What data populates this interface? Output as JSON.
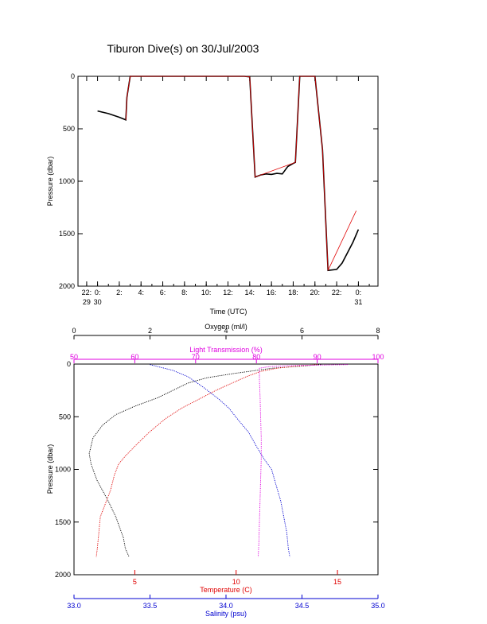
{
  "title": "Tiburon Dive(s) on 30/Jul/2003",
  "colors": {
    "black": "#000000",
    "red": "#e00000",
    "blue": "#0000d0",
    "magenta": "#e000e0"
  },
  "chart_data": [
    {
      "type": "line",
      "xlabel": "Time (UTC)",
      "ylabel": "Pressure (dbar)",
      "y_reversed": true,
      "ylim": [
        0,
        2000
      ],
      "xlim": [
        -1.8,
        25.8
      ],
      "x_ticks": [
        {
          "x": -1,
          "line1": "22:",
          "line2": "29"
        },
        {
          "x": 0,
          "line1": "0:",
          "line2": "30"
        },
        {
          "x": 2,
          "line1": "2:",
          "line2": ""
        },
        {
          "x": 4,
          "line1": "4:",
          "line2": ""
        },
        {
          "x": 6,
          "line1": "6:",
          "line2": ""
        },
        {
          "x": 8,
          "line1": "8:",
          "line2": ""
        },
        {
          "x": 10,
          "line1": "10:",
          "line2": ""
        },
        {
          "x": 12,
          "line1": "12:",
          "line2": ""
        },
        {
          "x": 14,
          "line1": "14:",
          "line2": ""
        },
        {
          "x": 16,
          "line1": "16:",
          "line2": ""
        },
        {
          "x": 18,
          "line1": "18:",
          "line2": ""
        },
        {
          "x": 20,
          "line1": "20:",
          "line2": ""
        },
        {
          "x": 22,
          "line1": "22:",
          "line2": ""
        },
        {
          "x": 24,
          "line1": "0:",
          "line2": "31"
        }
      ],
      "y_ticks": [
        0,
        500,
        1000,
        1500,
        2000
      ],
      "series": [
        {
          "color": "#000000",
          "points": [
            [
              0.0,
              330
            ],
            [
              1.0,
              355
            ],
            [
              2.0,
              390
            ],
            [
              2.6,
              415
            ],
            [
              2.7,
              200
            ],
            [
              3.0,
              0
            ],
            [
              13.5,
              0
            ],
            [
              14.0,
              5
            ],
            [
              14.5,
              960
            ],
            [
              15.0,
              940
            ],
            [
              15.5,
              930
            ],
            [
              16.0,
              935
            ],
            [
              16.5,
              925
            ],
            [
              17.0,
              930
            ],
            [
              17.5,
              860
            ],
            [
              18.0,
              830
            ],
            [
              18.2,
              820
            ],
            [
              18.6,
              0
            ],
            [
              20.0,
              0
            ],
            [
              20.7,
              700
            ],
            [
              21.2,
              1850
            ],
            [
              22.0,
              1840
            ],
            [
              22.5,
              1780
            ],
            [
              23.0,
              1680
            ],
            [
              23.5,
              1580
            ],
            [
              24.0,
              1460
            ]
          ]
        },
        {
          "color": "#e00000",
          "points": [
            [
              2.6,
              415
            ],
            [
              2.7,
              200
            ],
            [
              3.0,
              0
            ],
            [
              13.5,
              0
            ],
            [
              14.0,
              5
            ],
            [
              14.5,
              960
            ],
            [
              18.2,
              820
            ],
            [
              18.6,
              0
            ],
            [
              20.0,
              0
            ],
            [
              20.7,
              700
            ],
            [
              21.2,
              1850
            ],
            [
              23.8,
              1280
            ]
          ]
        }
      ]
    },
    {
      "type": "scatter",
      "ylabel": "Pressure (dbar)",
      "y_reversed": true,
      "ylim": [
        0,
        2000
      ],
      "y_ticks": [
        0,
        500,
        1000,
        1500,
        2000
      ],
      "axes": [
        {
          "label": "Oxygen (ml/l)",
          "color": "#000000",
          "position": "top",
          "range": [
            0,
            8
          ],
          "ticks": [
            "0",
            "2",
            "4",
            "6",
            "8"
          ]
        },
        {
          "label": "Light Transmission (%)",
          "color": "#e000e0",
          "position": "top",
          "range": [
            50,
            100
          ],
          "ticks": [
            "50",
            "60",
            "70",
            "80",
            "90",
            "100"
          ]
        },
        {
          "label": "Temperature (C)",
          "color": "#e00000",
          "position": "bottom",
          "range": [
            2,
            17
          ],
          "ticks": [
            "5",
            "10",
            "15"
          ]
        },
        {
          "label": "Salinity (psu)",
          "color": "#0000d0",
          "position": "bottom",
          "range": [
            33.0,
            35.0
          ],
          "ticks": [
            "33.0",
            "33.5",
            "34.0",
            "34.5",
            "35.0"
          ]
        }
      ],
      "series": [
        {
          "axis": 0,
          "color": "#000000",
          "points": [
            [
              6.5,
              5
            ],
            [
              5.2,
              40
            ],
            [
              4.2,
              90
            ],
            [
              3.5,
              130
            ],
            [
              3.0,
              180
            ],
            [
              2.6,
              250
            ],
            [
              2.2,
              320
            ],
            [
              1.6,
              400
            ],
            [
              1.1,
              480
            ],
            [
              0.75,
              580
            ],
            [
              0.5,
              700
            ],
            [
              0.4,
              850
            ],
            [
              0.45,
              950
            ],
            [
              0.6,
              1100
            ],
            [
              0.9,
              1300
            ],
            [
              1.1,
              1450
            ],
            [
              1.2,
              1550
            ],
            [
              1.3,
              1650
            ],
            [
              1.35,
              1750
            ],
            [
              1.45,
              1830
            ]
          ]
        },
        {
          "axis": 2,
          "color": "#e00000",
          "points": [
            [
              14.0,
              5
            ],
            [
              13.0,
              20
            ],
            [
              12.0,
              40
            ],
            [
              11.2,
              70
            ],
            [
              10.5,
              120
            ],
            [
              9.8,
              180
            ],
            [
              9.0,
              250
            ],
            [
              8.2,
              330
            ],
            [
              7.3,
              420
            ],
            [
              6.5,
              520
            ],
            [
              5.7,
              650
            ],
            [
              5.0,
              780
            ],
            [
              4.5,
              880
            ],
            [
              4.2,
              950
            ],
            [
              4.0,
              1050
            ],
            [
              3.8,
              1200
            ],
            [
              3.5,
              1350
            ],
            [
              3.3,
              1450
            ],
            [
              3.25,
              1550
            ],
            [
              3.2,
              1650
            ],
            [
              3.15,
              1750
            ],
            [
              3.1,
              1830
            ]
          ]
        },
        {
          "axis": 3,
          "color": "#0000d0",
          "points": [
            [
              33.5,
              5
            ],
            [
              33.65,
              60
            ],
            [
              33.75,
              120
            ],
            [
              33.85,
              220
            ],
            [
              33.95,
              330
            ],
            [
              34.02,
              420
            ],
            [
              34.08,
              530
            ],
            [
              34.15,
              650
            ],
            [
              34.2,
              780
            ],
            [
              34.25,
              900
            ],
            [
              34.3,
              1000
            ],
            [
              34.33,
              1150
            ],
            [
              34.36,
              1300
            ],
            [
              34.38,
              1450
            ],
            [
              34.4,
              1600
            ],
            [
              34.41,
              1750
            ],
            [
              34.42,
              1830
            ]
          ]
        },
        {
          "axis": 1,
          "color": "#e000e0",
          "points": [
            [
              95,
              5
            ],
            [
              90,
              10
            ],
            [
              85,
              15
            ],
            [
              82,
              25
            ],
            [
              80.5,
              40
            ],
            [
              80.5,
              150
            ],
            [
              80.6,
              300
            ],
            [
              80.7,
              500
            ],
            [
              80.8,
              700
            ],
            [
              80.8,
              900
            ],
            [
              80.7,
              1100
            ],
            [
              80.6,
              1300
            ],
            [
              80.5,
              1500
            ],
            [
              80.4,
              1700
            ],
            [
              80.3,
              1830
            ]
          ]
        }
      ]
    }
  ]
}
